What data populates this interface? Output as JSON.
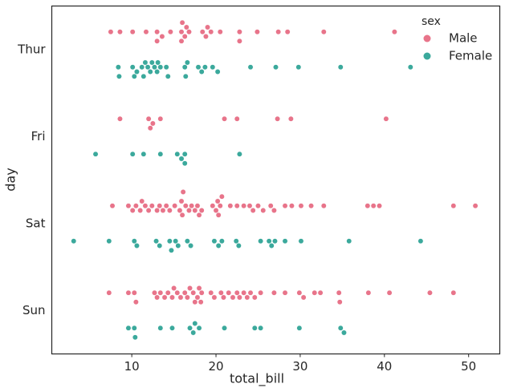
{
  "chart_data": {
    "type": "swarm",
    "orientation": "horizontal",
    "x_label": "total_bill",
    "y_label": "day",
    "legend_title": "sex",
    "legend": "upper right",
    "xlim": [
      0.5,
      53.7
    ],
    "xticks": [
      10,
      20,
      30,
      40,
      50
    ],
    "categories": [
      "Thur",
      "Fri",
      "Sat",
      "Sun"
    ],
    "series": [
      {
        "name": "Male",
        "color": "#e8748a",
        "values": [
          [
            7.5,
            8.6,
            10.1,
            11.7,
            13.0,
            13.0,
            13.6,
            14.6,
            15.9,
            15.9,
            16.0,
            16.3,
            16.5,
            16.8,
            18.4,
            18.8,
            19.0,
            19.4,
            20.5,
            22.8,
            22.8,
            24.9,
            27.4,
            28.5,
            32.8,
            41.2
          ],
          [
            8.6,
            12.0,
            12.2,
            12.5,
            13.4,
            21.0,
            22.5,
            27.3,
            28.9,
            40.2
          ],
          [
            7.7,
            9.6,
            10.1,
            10.5,
            11.0,
            11.2,
            11.6,
            12.0,
            12.4,
            13.0,
            13.3,
            13.7,
            14.1,
            14.5,
            15.1,
            15.7,
            15.9,
            16.0,
            16.1,
            16.4,
            16.8,
            17.1,
            17.5,
            17.8,
            18.0,
            18.3,
            19.6,
            20.0,
            20.2,
            20.3,
            20.5,
            20.7,
            21.7,
            22.5,
            23.3,
            24.0,
            24.4,
            25.0,
            25.6,
            26.5,
            26.9,
            28.2,
            29.0,
            30.1,
            31.3,
            32.8,
            38.0,
            38.7,
            39.4,
            48.2,
            50.8
          ],
          [
            7.3,
            9.6,
            10.3,
            10.5,
            12.7,
            13.0,
            13.4,
            13.9,
            14.3,
            14.8,
            15.0,
            15.4,
            15.8,
            16.3,
            16.6,
            16.9,
            17.3,
            17.5,
            17.8,
            18.0,
            18.2,
            18.3,
            19.4,
            19.8,
            20.6,
            20.9,
            21.5,
            22.0,
            22.5,
            22.8,
            23.3,
            23.7,
            24.1,
            24.6,
            25.3,
            26.9,
            28.2,
            29.9,
            30.4,
            31.7,
            32.4,
            34.6,
            34.7,
            38.1,
            40.6,
            45.4,
            48.2
          ]
        ]
      },
      {
        "name": "Female",
        "color": "#3ba99c",
        "values": [
          [
            8.4,
            8.5,
            10.1,
            10.3,
            10.6,
            11.2,
            11.4,
            11.6,
            11.9,
            12.2,
            12.4,
            12.7,
            13.0,
            13.1,
            13.4,
            14.1,
            14.3,
            16.3,
            16.4,
            16.6,
            17.9,
            18.3,
            18.7,
            19.6,
            20.2,
            24.1,
            27.1,
            29.8,
            34.8,
            43.1
          ],
          [
            5.7,
            10.1,
            11.4,
            13.4,
            15.4,
            15.9,
            16.3,
            16.3,
            22.8
          ],
          [
            3.1,
            7.3,
            10.3,
            10.6,
            12.9,
            13.3,
            14.5,
            14.7,
            15.2,
            15.5,
            16.6,
            17.0,
            19.8,
            20.3,
            20.7,
            22.4,
            22.7,
            25.3,
            26.3,
            26.6,
            27.0,
            28.2,
            30.1,
            35.8,
            44.3
          ],
          [
            9.6,
            10.3,
            10.4,
            13.4,
            14.8,
            16.9,
            17.3,
            17.5,
            18.0,
            21.0,
            24.6,
            25.3,
            29.9,
            34.8,
            35.2
          ]
        ]
      }
    ]
  }
}
